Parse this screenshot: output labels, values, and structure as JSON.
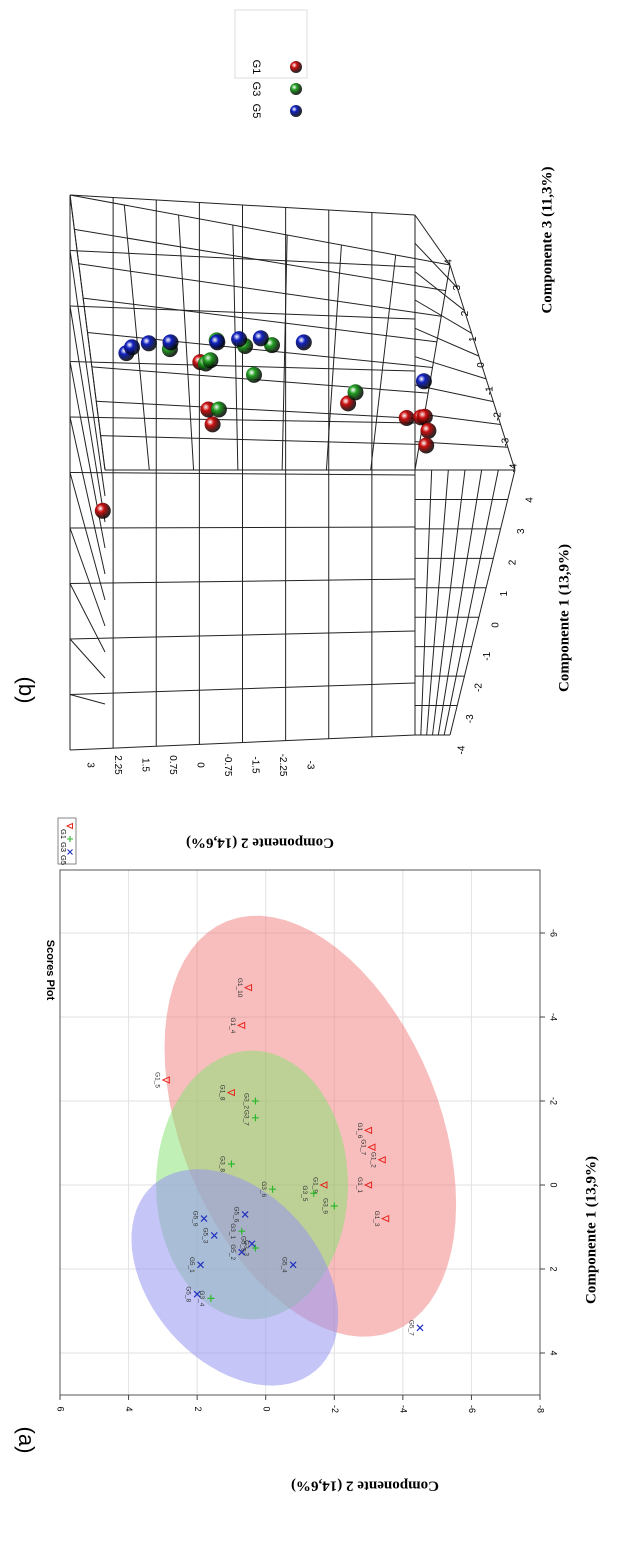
{
  "panel_a": {
    "letter": "(a)",
    "chart_data": {
      "type": "scatter",
      "title": "Scores Plot",
      "xlabel": "Componente 1 (13,9%)",
      "ylabel": "Componente 2 (14,6%)",
      "xlim": [
        -7.5,
        5
      ],
      "ylim": [
        -8,
        6
      ],
      "xticks": [
        -6,
        -4,
        -2,
        0,
        2,
        4
      ],
      "yticks": [
        -8,
        -6,
        -4,
        -2,
        0,
        2,
        4,
        6
      ],
      "xtick_labels": [
        "-6",
        "-4",
        "-2",
        "0",
        "2",
        "4"
      ],
      "ytick_labels": [
        "-8",
        "-6",
        "-4",
        "-2",
        "0",
        "2",
        "4",
        "6"
      ],
      "grid": true,
      "legend_position": "top-right",
      "series": [
        {
          "name": "G1",
          "color": "#e8241c",
          "marker": "triangle",
          "ellipse": {
            "cx": -1.4,
            "cy": -1.3,
            "rx": 5.5,
            "ry": 3.6,
            "angle": -33,
            "fill": "rgba(239,110,110,0.45)"
          },
          "points": [
            {
              "label": "G1_1",
              "x": 0.0,
              "y": -3.0
            },
            {
              "label": "G1_2",
              "x": -0.6,
              "y": -3.4
            },
            {
              "label": "G1_3",
              "x": 0.8,
              "y": -3.5
            },
            {
              "label": "G1_4",
              "x": -3.8,
              "y": 0.7
            },
            {
              "label": "G1_5",
              "x": -2.5,
              "y": 2.9
            },
            {
              "label": "G1_6",
              "x": -1.3,
              "y": -3.0
            },
            {
              "label": "G1_7",
              "x": -0.9,
              "y": -3.1
            },
            {
              "label": "G1_8",
              "x": -2.2,
              "y": 1.0
            },
            {
              "label": "G1_9",
              "x": 0.0,
              "y": -1.7
            },
            {
              "label": "G1_10",
              "x": -4.7,
              "y": 0.5
            }
          ]
        },
        {
          "name": "G3",
          "color": "#2eb82e",
          "marker": "plus",
          "ellipse": {
            "cx": 0.0,
            "cy": 0.4,
            "rx": 3.2,
            "ry": 2.8,
            "angle": 0,
            "fill": "rgba(130,225,110,0.5)"
          },
          "points": [
            {
              "label": "G3_1",
              "x": 1.1,
              "y": 0.7
            },
            {
              "label": "G3_2",
              "x": -2.0,
              "y": 0.3
            },
            {
              "label": "G3_3",
              "x": 1.5,
              "y": 0.3
            },
            {
              "label": "G3_4",
              "x": 2.7,
              "y": 1.6
            },
            {
              "label": "G3_5",
              "x": 0.2,
              "y": -1.4
            },
            {
              "label": "G3_6",
              "x": 0.1,
              "y": -0.2
            },
            {
              "label": "G3_7",
              "x": -1.6,
              "y": 0.3
            },
            {
              "label": "G3_8",
              "x": -0.5,
              "y": 1.0
            },
            {
              "label": "G3_9",
              "x": 0.5,
              "y": -2.0
            }
          ]
        },
        {
          "name": "G5",
          "color": "#2030c0",
          "marker": "x",
          "ellipse": {
            "cx": 2.2,
            "cy": 0.9,
            "rx": 3.3,
            "ry": 2.2,
            "angle": -57,
            "fill": "rgba(150,150,240,0.55)"
          },
          "points": [
            {
              "label": "G5_1",
              "x": 1.9,
              "y": 1.9
            },
            {
              "label": "G5_2",
              "x": 1.6,
              "y": 0.7
            },
            {
              "label": "G5_3",
              "x": 1.2,
              "y": 1.5
            },
            {
              "label": "G5_4",
              "x": 1.9,
              "y": -0.8
            },
            {
              "label": "G5_5",
              "x": 1.4,
              "y": 0.4
            },
            {
              "label": "G5_6",
              "x": 0.7,
              "y": 0.6
            },
            {
              "label": "G5_7",
              "x": 3.4,
              "y": -4.5
            },
            {
              "label": "G5_8",
              "x": 2.6,
              "y": 2.0
            },
            {
              "label": "G5_9",
              "x": 0.8,
              "y": 1.8
            }
          ]
        }
      ]
    }
  },
  "panel_b": {
    "letter": "(b)",
    "chart_data": {
      "type": "scatter",
      "title": "",
      "xlabel": "Componente 1 (13,9%)",
      "ylabel": "Componente 2 (14,6%)",
      "zlabel": "Componente 3 (11,3%)",
      "xlim": [
        -4,
        4
      ],
      "ylim": [
        -3,
        3
      ],
      "zlim": [
        -4,
        4
      ],
      "xtick_labels": [
        "-4",
        "-3",
        "-2",
        "-1",
        "0",
        "1",
        "2",
        "3",
        "4"
      ],
      "ytick_labels": [
        "3",
        "2.25",
        "1.5",
        "0.75",
        "0",
        "-0.75",
        "-1.5",
        "-2.25",
        "-3"
      ],
      "ztick_labels": [
        "-4",
        "-3",
        "-2",
        "-1",
        "0",
        "1",
        "2",
        "3",
        "4"
      ],
      "grid": true,
      "legend_position": "top-right",
      "legend": [
        {
          "name": "G1",
          "color": "#cc1010"
        },
        {
          "name": "G3",
          "color": "#22a022"
        },
        {
          "name": "G5",
          "color": "#1020c0"
        }
      ],
      "series": [
        {
          "name": "G1",
          "color": "#cc1010",
          "points": [
            {
              "x": -2.2,
              "y": 2.8,
              "z": 1.0
            },
            {
              "x": 0.6,
              "y": 0.8,
              "z": 2.7
            },
            {
              "x": 1.2,
              "y": 0.9,
              "z": 2.8
            },
            {
              "x": 3.0,
              "y": 1.1,
              "z": 3.3
            },
            {
              "x": 3.0,
              "y": -1.6,
              "z": 0.3
            },
            {
              "x": 4.0,
              "y": -2.6,
              "z": -2.4
            },
            {
              "x": 3.6,
              "y": -2.9,
              "z": -1.7
            },
            {
              "x": 3.2,
              "y": -3.0,
              "z": -1.0
            },
            {
              "x": 3.8,
              "y": -3.0,
              "z": -3.0
            },
            {
              "x": 2.9,
              "y": -3.0,
              "z": -2.6
            }
          ]
        },
        {
          "name": "G3",
          "color": "#22a022",
          "points": [
            {
              "x": 1.2,
              "y": 0.7,
              "z": 2.8
            },
            {
              "x": 3.0,
              "y": 1.0,
              "z": 3.2
            },
            {
              "x": 2.9,
              "y": 0.9,
              "z": 3.6
            },
            {
              "x": 2.8,
              "y": 0.1,
              "z": 2.7
            },
            {
              "x": 3.6,
              "y": 0.8,
              "z": 3.9
            },
            {
              "x": 4.0,
              "y": -0.2,
              "z": 2.9
            },
            {
              "x": 3.7,
              "y": 1.7,
              "z": 3.1
            },
            {
              "x": 3.8,
              "y": -1.7,
              "z": -0.2
            },
            {
              "x": 3.9,
              "y": 0.3,
              "z": 3.0
            }
          ]
        },
        {
          "name": "G5",
          "color": "#1020c0",
          "points": [
            {
              "x": 3.4,
              "y": 2.5,
              "z": 3.3
            },
            {
              "x": 3.6,
              "y": 2.4,
              "z": 3.4
            },
            {
              "x": 3.9,
              "y": 2.1,
              "z": 3.2
            },
            {
              "x": 4.0,
              "y": 1.7,
              "z": 3.1
            },
            {
              "x": 3.7,
              "y": 0.8,
              "z": 3.6
            },
            {
              "x": 3.9,
              "y": 0.4,
              "z": 3.5
            },
            {
              "x": 4.0,
              "y": 0.0,
              "z": 3.4
            },
            {
              "x": 4.0,
              "y": -0.8,
              "z": 3.1
            },
            {
              "x": 3.8,
              "y": -3.0,
              "z": 0.6
            }
          ]
        }
      ]
    }
  }
}
